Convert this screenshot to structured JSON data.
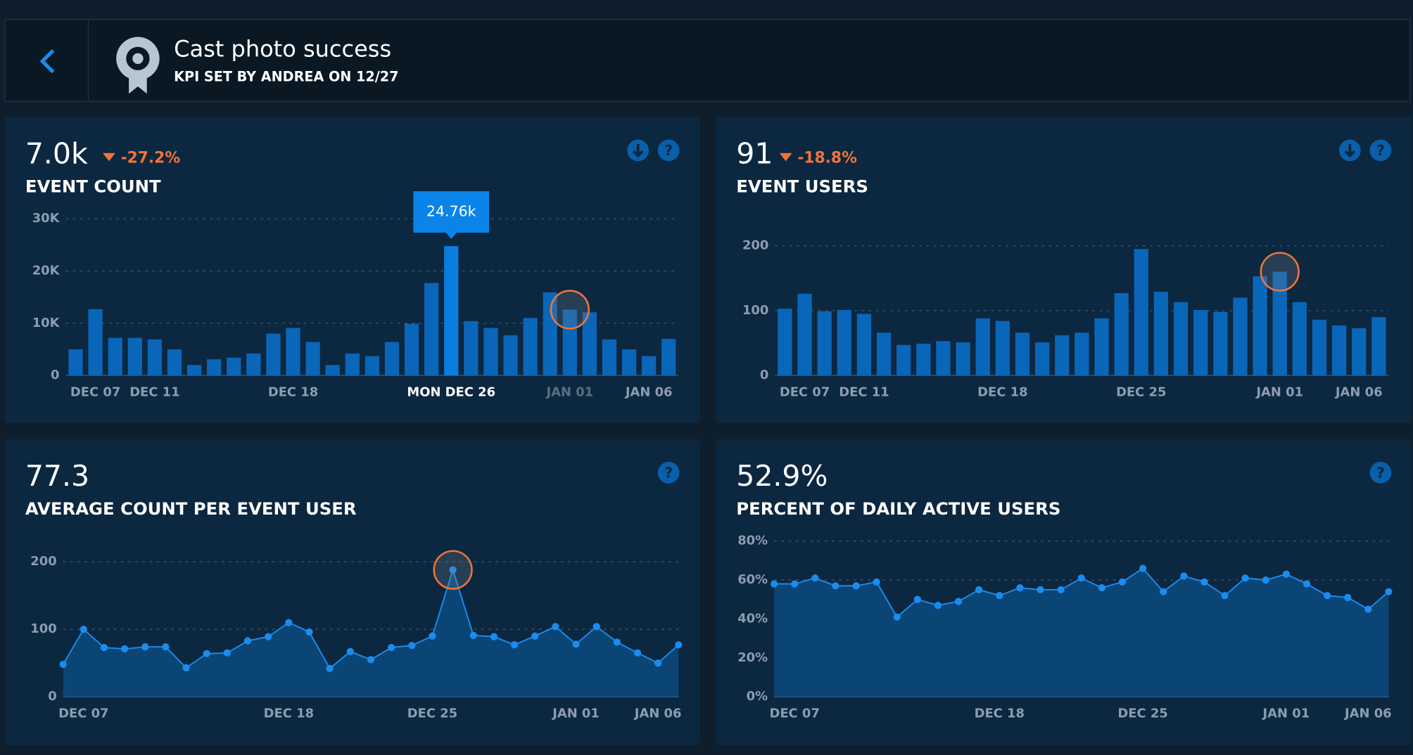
{
  "header": {
    "title": "Cast photo success",
    "subtitle": "KPI SET BY ANDREA ON 12/27"
  },
  "chart_data": [
    {
      "type": "bar",
      "kpi": "7.0k",
      "change": "-27.2%",
      "title": "EVENT COUNT",
      "color": "#0a66b8",
      "categories": [
        null,
        "DEC 07",
        null,
        null,
        "DEC 11",
        null,
        null,
        null,
        null,
        null,
        null,
        "DEC 18",
        null,
        null,
        null,
        null,
        null,
        null,
        null,
        "MON DEC 26",
        null,
        null,
        null,
        null,
        null,
        "JAN 01",
        null,
        null,
        null,
        "JAN 06",
        null
      ],
      "values": [
        5000,
        12700,
        7200,
        7200,
        6900,
        5000,
        2000,
        3100,
        3400,
        4200,
        8000,
        9100,
        6400,
        2000,
        4200,
        3700,
        6400,
        9900,
        17700,
        24760,
        10400,
        9100,
        7700,
        11000,
        15900,
        12600,
        12100,
        6900,
        5000,
        3700,
        7000
      ],
      "value_labels": [
        null,
        null,
        null,
        null,
        null,
        null,
        null,
        null,
        null,
        null,
        null,
        null,
        null,
        null,
        null,
        null,
        null,
        null,
        null,
        "24.76k",
        null,
        null,
        null,
        null,
        null,
        null,
        null,
        null,
        null,
        null,
        null
      ],
      "ylim": [
        0,
        30000
      ],
      "yticks": [
        0,
        {
          "value": 10000,
          "label": "10K"
        },
        {
          "value": 20000,
          "label": "20K"
        },
        {
          "value": 30000,
          "label": "30K"
        }
      ],
      "grid": true
    },
    {
      "type": "bar",
      "kpi": "91",
      "change": "-18.8%",
      "title": "EVENT USERS",
      "color": "#0a66b8",
      "categories": [
        null,
        "DEC 07",
        null,
        null,
        "DEC 11",
        null,
        null,
        null,
        null,
        null,
        null,
        "DEC 18",
        null,
        null,
        null,
        null,
        null,
        null,
        "DEC 25",
        null,
        null,
        null,
        null,
        null,
        null,
        "JAN 01",
        null,
        null,
        null,
        "JAN 06",
        null
      ],
      "values": [
        103,
        126,
        99,
        101,
        95,
        66,
        47,
        49,
        53,
        51,
        88,
        84,
        66,
        51,
        62,
        66,
        88,
        127,
        195,
        129,
        113,
        101,
        98,
        120,
        153,
        160,
        113,
        86,
        77,
        73,
        90
      ],
      "ylim": [
        0,
        200
      ],
      "yticks": [
        0,
        100,
        200
      ],
      "grid": true
    },
    {
      "type": "line",
      "kpi": "77.3",
      "title": "AVERAGE COUNT PER EVENT USER",
      "color": "#1a8cf0",
      "categories": [
        null,
        "DEC 07",
        null,
        null,
        null,
        null,
        null,
        null,
        null,
        null,
        null,
        "DEC 18",
        null,
        null,
        null,
        null,
        null,
        null,
        "DEC 25",
        null,
        null,
        null,
        null,
        null,
        null,
        "JAN 01",
        null,
        null,
        null,
        "JAN 06",
        null
      ],
      "values": [
        48,
        100,
        73,
        71,
        74,
        74,
        43,
        64,
        65,
        83,
        89,
        110,
        96,
        42,
        67,
        55,
        73,
        76,
        90,
        188,
        91,
        89,
        77,
        90,
        104,
        78,
        104,
        81,
        65,
        50,
        77
      ],
      "ylim": [
        0,
        200
      ],
      "yticks": [
        0,
        100,
        200
      ],
      "grid": true
    },
    {
      "type": "line",
      "kpi": "52.9%",
      "title": "PERCENT OF DAILY ACTIVE USERS",
      "color": "#1a8cf0",
      "categories": [
        null,
        "DEC 07",
        null,
        null,
        null,
        null,
        null,
        null,
        null,
        null,
        null,
        "DEC 18",
        null,
        null,
        null,
        null,
        null,
        null,
        "DEC 25",
        null,
        null,
        null,
        null,
        null,
        null,
        "JAN 01",
        null,
        null,
        null,
        "JAN 06",
        null
      ],
      "values": [
        58,
        58,
        61,
        57,
        57,
        59,
        41,
        50,
        47,
        49,
        55,
        52,
        56,
        55,
        55,
        61,
        56,
        59,
        66,
        54,
        62,
        59,
        52,
        61,
        60,
        63,
        58,
        52,
        51,
        45,
        54
      ],
      "ylim": [
        0,
        80
      ],
      "yticks": [
        {
          "value": 0,
          "label": "0%"
        },
        {
          "value": 20,
          "label": "20%"
        },
        {
          "value": 40,
          "label": "40%"
        },
        {
          "value": 60,
          "label": "60%"
        },
        {
          "value": 80,
          "label": "80%"
        }
      ],
      "grid": true
    }
  ]
}
